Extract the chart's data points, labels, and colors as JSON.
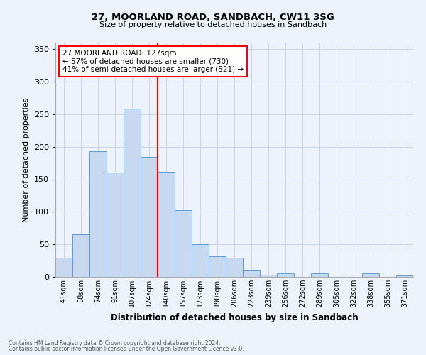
{
  "title1": "27, MOORLAND ROAD, SANDBACH, CW11 3SG",
  "title2": "Size of property relative to detached houses in Sandbach",
  "xlabel": "Distribution of detached houses by size in Sandbach",
  "ylabel": "Number of detached properties",
  "bar_labels": [
    "41sqm",
    "58sqm",
    "74sqm",
    "91sqm",
    "107sqm",
    "124sqm",
    "140sqm",
    "157sqm",
    "173sqm",
    "190sqm",
    "206sqm",
    "223sqm",
    "239sqm",
    "256sqm",
    "272sqm",
    "289sqm",
    "305sqm",
    "322sqm",
    "338sqm",
    "355sqm",
    "371sqm"
  ],
  "bar_values": [
    30,
    65,
    193,
    160,
    258,
    184,
    162,
    103,
    50,
    32,
    29,
    11,
    3,
    5,
    0,
    6,
    0,
    0,
    5,
    0,
    2
  ],
  "bar_color": "#c6d9f0",
  "bar_edge_color": "#5b9bd5",
  "vline_x_index": 5,
  "vline_color": "red",
  "annotation_title": "27 MOORLAND ROAD: 127sqm",
  "annotation_line1": "← 57% of detached houses are smaller (730)",
  "annotation_line2": "41% of semi-detached houses are larger (521) →",
  "annotation_box_color": "white",
  "annotation_box_edge": "red",
  "ylim": [
    0,
    360
  ],
  "yticks": [
    0,
    50,
    100,
    150,
    200,
    250,
    300,
    350
  ],
  "footer1": "Contains HM Land Registry data © Crown copyright and database right 2024.",
  "footer2": "Contains public sector information licensed under the Open Government Licence v3.0.",
  "bg_color": "#edf2fb",
  "grid_color": "#c8d4e8"
}
